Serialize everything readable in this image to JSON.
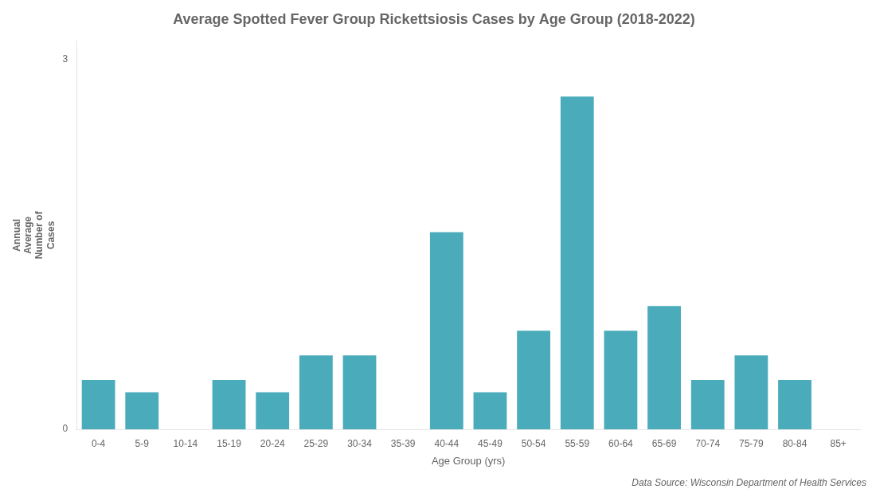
{
  "chart_data": {
    "type": "bar",
    "title": "Average Spotted Fever Group Rickettsiosis Cases by Age Group (2018-2022)",
    "xlabel": "Age Group (yrs)",
    "ylabel": "Annual\nAverage\nNumber of\nCases",
    "categories": [
      "0-4",
      "5-9",
      "10-14",
      "15-19",
      "20-24",
      "25-29",
      "30-34",
      "35-39",
      "40-44",
      "45-49",
      "50-54",
      "55-59",
      "60-64",
      "65-69",
      "70-74",
      "75-79",
      "80-84",
      "85+"
    ],
    "values": [
      0.4,
      0.3,
      0.0,
      0.4,
      0.3,
      0.6,
      0.6,
      0.0,
      1.6,
      0.3,
      0.8,
      2.7,
      0.8,
      1.0,
      0.4,
      0.6,
      0.4,
      0.0
    ],
    "color": "#4AABBB",
    "ylim": [
      0,
      3.15
    ],
    "yticks": [
      0,
      3
    ],
    "grid": false,
    "annotations": [
      "Data Source: Wisconsin Department of Health Services"
    ]
  }
}
